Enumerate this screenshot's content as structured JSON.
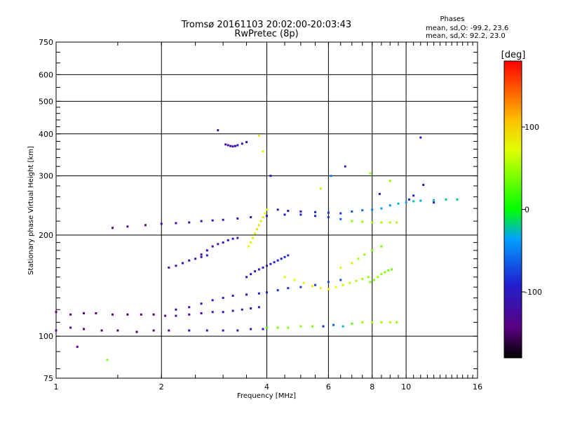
{
  "title_line1": "Tromsø 20161103 20:02:00-20:03:43",
  "title_line2": "RwPretec (8p)",
  "phase_info": {
    "heading": "Phases",
    "line_o": "mean, sd,O: -99.2, 23.6",
    "line_x": "mean, sd,X:  92.2, 23.0"
  },
  "chart_data": {
    "type": "scatter",
    "title": "Tromsø 20161103 20:02:00-20:03:43",
    "subtitle": "RwPretec (8p)",
    "xlabel": "Frequency [MHz]",
    "ylabel": "Stationary phase Virtual Height [km]",
    "x_scale": "log",
    "y_scale": "log",
    "xlim": [
      1,
      16
    ],
    "ylim": [
      75,
      750
    ],
    "x_ticks": [
      1,
      2,
      4,
      6,
      8,
      10,
      16
    ],
    "x_tick_labels": [
      "1",
      "2",
      "4",
      "6",
      "8",
      "10",
      "16"
    ],
    "y_ticks": [
      75,
      100,
      200,
      300,
      400,
      500,
      600,
      750
    ],
    "y_tick_labels": [
      "75",
      "100",
      "200",
      "300",
      "400",
      "500",
      "600",
      "750"
    ],
    "grid": true,
    "colorbar": {
      "label": "[deg]",
      "range": [
        -180,
        180
      ],
      "ticks": [
        100,
        0,
        -100
      ],
      "tick_labels": [
        "100",
        "0",
        "-100"
      ]
    },
    "series": [
      {
        "x": [
          1.0,
          1.1,
          1.2,
          1.35,
          1.5,
          1.7,
          1.9,
          2.1,
          2.4,
          2.7,
          3.0,
          3.3,
          3.6,
          3.9
        ],
        "y": [
          104,
          106,
          105,
          104,
          104,
          103,
          104,
          104,
          104,
          104,
          104,
          104,
          105,
          105
        ],
        "phase": [
          -130,
          -140,
          -140,
          -150,
          -150,
          -150,
          -145,
          -125,
          -115,
          -110,
          -110,
          -110,
          -105,
          -105
        ]
      },
      {
        "x": [
          4.0,
          4.3,
          4.6,
          5.0,
          5.4,
          5.8,
          6.2,
          6.6,
          7.0,
          7.5,
          8.0,
          8.5,
          9.0,
          9.4
        ],
        "y": [
          106,
          106,
          106,
          107,
          107,
          107,
          108,
          107,
          109,
          110,
          110,
          110,
          110,
          110
        ],
        "phase": [
          20,
          35,
          40,
          45,
          40,
          -90,
          -60,
          -30,
          25,
          45,
          50,
          50,
          55,
          45
        ]
      },
      {
        "x": [
          1.0,
          1.1,
          1.2,
          1.3,
          1.45,
          1.6,
          1.75,
          1.9,
          2.05,
          2.2,
          2.4,
          2.6,
          2.8,
          3.0,
          3.2,
          3.4,
          3.6,
          3.8
        ],
        "y": [
          118,
          116,
          117,
          117,
          116,
          116,
          116,
          116,
          115,
          115,
          116,
          117,
          118,
          118,
          119,
          120,
          121,
          122
        ],
        "phase": [
          -135,
          -140,
          -140,
          -145,
          -145,
          -150,
          -150,
          -145,
          -140,
          -130,
          -125,
          -120,
          -115,
          -110,
          -110,
          -110,
          -105,
          -105
        ]
      },
      {
        "x": [
          2.2,
          2.4,
          2.6,
          2.8,
          3.0,
          3.2,
          3.5,
          3.8,
          4.0,
          4.3,
          4.6,
          5.0,
          5.5,
          6.0,
          6.5
        ],
        "y": [
          120,
          122,
          125,
          128,
          130,
          132,
          133,
          134,
          135,
          137,
          139,
          140,
          142,
          145,
          147
        ],
        "phase": [
          -130,
          -120,
          -110,
          -105,
          -100,
          -100,
          -95,
          -90,
          -90,
          -85,
          -80,
          -80,
          -75,
          -70,
          -70
        ]
      },
      {
        "x": [
          1.45,
          1.6,
          1.8,
          2.0,
          2.2,
          2.4,
          2.6,
          2.8,
          3.0,
          3.3,
          3.6,
          4.0,
          4.5,
          5.0,
          5.5,
          6.0,
          6.5,
          7.0,
          7.5,
          8.0,
          8.5,
          9.0,
          9.4
        ],
        "y": [
          210,
          212,
          214,
          216,
          217,
          218,
          220,
          221,
          222,
          224,
          226,
          228,
          230,
          230,
          228,
          226,
          223,
          220,
          219,
          218,
          218,
          218,
          218
        ],
        "phase": [
          -140,
          -135,
          -130,
          -125,
          -120,
          -115,
          -110,
          -105,
          -105,
          -100,
          -100,
          -95,
          -95,
          -90,
          -85,
          -80,
          -60,
          40,
          45,
          50,
          50,
          55,
          55
        ]
      },
      {
        "x": [
          4.3,
          4.6,
          5.0,
          5.5,
          6.0,
          6.5,
          7.0,
          7.5,
          8.0,
          8.5,
          9.0,
          9.5,
          10.0,
          10.5,
          11.0,
          12.0,
          13.0,
          14.0
        ],
        "y": [
          238,
          236,
          235,
          234,
          233,
          232,
          235,
          237,
          238,
          240,
          245,
          248,
          250,
          252,
          253,
          254,
          255,
          255
        ],
        "phase": [
          -110,
          -100,
          -95,
          -90,
          -85,
          -80,
          -70,
          -60,
          -50,
          -40,
          -40,
          -30,
          -35,
          -20,
          -30,
          -25,
          -20,
          -20
        ]
      },
      {
        "x": [
          3.55,
          3.6,
          3.65,
          3.7,
          3.75,
          3.8,
          3.85,
          3.9,
          3.95,
          4.0
        ],
        "y": [
          185,
          190,
          196,
          202,
          208,
          214,
          220,
          226,
          232,
          238
        ],
        "phase": [
          75,
          80,
          85,
          85,
          90,
          90,
          85,
          80,
          75,
          70
        ]
      },
      {
        "x": [
          3.5,
          3.6,
          3.7,
          3.8,
          3.9,
          4.0,
          4.1,
          4.2,
          4.3,
          4.4,
          4.5,
          4.6
        ],
        "y": [
          150,
          153,
          156,
          158,
          160,
          162,
          164,
          166,
          168,
          170,
          172,
          174
        ],
        "phase": [
          -120,
          -115,
          -110,
          -105,
          -100,
          -100,
          -95,
          -95,
          -90,
          -90,
          -85,
          -85
        ]
      },
      {
        "x": [
          4.5,
          4.8,
          5.1,
          5.4,
          5.7,
          6.0,
          6.3,
          6.6,
          6.9,
          7.2,
          7.5,
          7.8
        ],
        "y": [
          150,
          147,
          144,
          141,
          139,
          138,
          140,
          142,
          144,
          146,
          148,
          150
        ],
        "phase": [
          70,
          75,
          80,
          85,
          80,
          75,
          70,
          65,
          60,
          55,
          50,
          45
        ]
      },
      {
        "x": [
          7.9,
          8.1,
          8.3,
          8.5,
          8.7,
          8.9,
          9.1
        ],
        "y": [
          145,
          147,
          150,
          153,
          155,
          157,
          158
        ],
        "phase": [
          40,
          45,
          50,
          45,
          40,
          35,
          30
        ]
      },
      {
        "x": [
          3.05,
          3.1,
          3.15,
          3.2,
          3.25,
          3.3,
          3.4,
          3.5
        ],
        "y": [
          372,
          370,
          368,
          367,
          368,
          370,
          374,
          378
        ],
        "phase": [
          -130,
          -125,
          -120,
          -115,
          -115,
          -110,
          -110,
          -105
        ]
      },
      {
        "x": [
          2.6,
          2.7,
          2.8,
          2.9,
          3.0,
          3.1,
          3.2,
          3.3
        ],
        "y": [
          175,
          180,
          185,
          188,
          190,
          193,
          195,
          196
        ],
        "phase": [
          -130,
          -125,
          -120,
          -115,
          -110,
          -105,
          -100,
          -100
        ]
      },
      {
        "x": [
          2.1,
          2.2,
          2.3,
          2.4,
          2.5,
          2.6,
          2.7
        ],
        "y": [
          160,
          162,
          165,
          168,
          170,
          172,
          174
        ],
        "phase": [
          -130,
          -125,
          -120,
          -115,
          -110,
          -105,
          -100
        ]
      },
      {
        "x": [
          6.5,
          7.0,
          7.3,
          7.6,
          8.0,
          8.5,
          9.0,
          10.5,
          11.2,
          12.0,
          2.9,
          3.8,
          6.1,
          3.9,
          5.7,
          8.4,
          1.15,
          1.4,
          4.1,
          6.7,
          7.9,
          10.2,
          11.0
        ],
        "y": [
          160,
          165,
          170,
          175,
          180,
          185,
          290,
          262,
          282,
          250,
          410,
          395,
          300,
          355,
          275,
          265,
          93,
          85,
          300,
          320,
          305,
          255,
          390
        ],
        "phase": [
          70,
          65,
          55,
          45,
          40,
          35,
          50,
          -100,
          -110,
          -90,
          -120,
          80,
          -50,
          80,
          60,
          -100,
          -140,
          40,
          -100,
          -90,
          45,
          -100,
          -110
        ]
      }
    ]
  }
}
